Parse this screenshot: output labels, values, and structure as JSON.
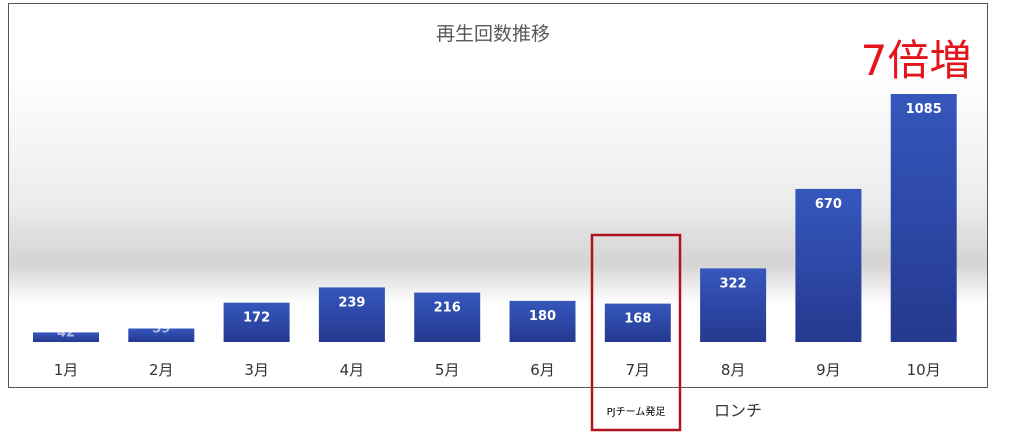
{
  "chart_data": {
    "type": "bar",
    "title": "再生回数推移",
    "categories": [
      "1月",
      "2月",
      "3月",
      "4月",
      "5月",
      "6月",
      "7月",
      "8月",
      "9月",
      "10月"
    ],
    "values": [
      42,
      59,
      172,
      239,
      216,
      180,
      168,
      322,
      670,
      1085
    ],
    "ylim": [
      0,
      1180
    ],
    "grid": false,
    "bar_color": "#2e4aa7",
    "annotations": {
      "growth": "7倍増",
      "team_start": "PJチーム発足",
      "launch": "ロンチ"
    },
    "highlight_color": "#b0131f",
    "growth_color": "#e3151a"
  }
}
